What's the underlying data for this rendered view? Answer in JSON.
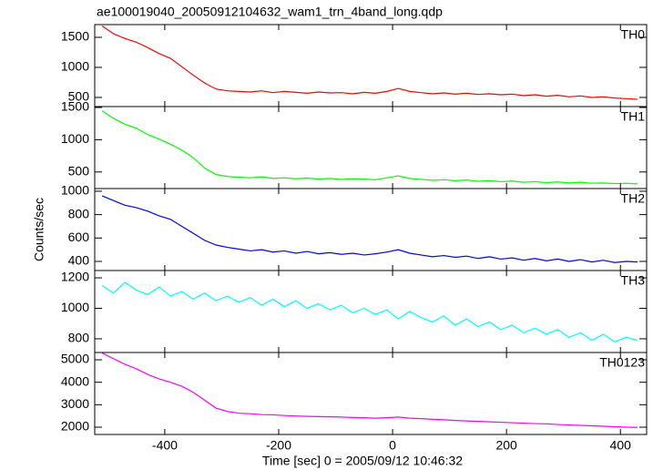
{
  "chart_data": {
    "type": "line",
    "title": "ae100019040_20050912104632_wam1_trn_4band_long.qdp",
    "xlabel": "Time [sec] 0 = 2005/09/12 10:46:32",
    "ylabel": "Counts/sec",
    "xlim": [
      -523,
      446
    ],
    "xticks": [
      -400,
      -200,
      0,
      200,
      400
    ],
    "x": [
      -510,
      -490,
      -470,
      -450,
      -430,
      -410,
      -390,
      -370,
      -350,
      -330,
      -310,
      -290,
      -270,
      -250,
      -230,
      -210,
      -190,
      -170,
      -150,
      -130,
      -110,
      -90,
      -70,
      -50,
      -30,
      -10,
      10,
      30,
      50,
      70,
      90,
      110,
      130,
      150,
      170,
      190,
      210,
      230,
      250,
      270,
      290,
      310,
      330,
      350,
      370,
      390,
      410,
      430
    ],
    "panels": [
      {
        "name": "TH0",
        "color": "#ff0000",
        "ylim": [
          348,
          1712
        ],
        "yticks": [
          500,
          1000,
          1500
        ],
        "values": [
          1690,
          1560,
          1480,
          1420,
          1330,
          1230,
          1150,
          1010,
          870,
          740,
          640,
          610,
          600,
          590,
          610,
          580,
          600,
          585,
          570,
          590,
          575,
          580,
          560,
          585,
          570,
          600,
          650,
          600,
          580,
          560,
          575,
          555,
          570,
          550,
          560,
          545,
          555,
          530,
          545,
          520,
          535,
          510,
          525,
          500,
          510,
          490,
          480,
          470
        ]
      },
      {
        "name": "TH1",
        "color": "#00ff00",
        "ylim": [
          243,
          1514
        ],
        "yticks": [
          500,
          1000,
          1500
        ],
        "values": [
          1450,
          1330,
          1240,
          1180,
          1080,
          1010,
          930,
          840,
          720,
          560,
          460,
          430,
          420,
          410,
          425,
          400,
          410,
          395,
          405,
          390,
          400,
          385,
          395,
          390,
          380,
          410,
          440,
          400,
          385,
          370,
          380,
          365,
          375,
          355,
          365,
          350,
          360,
          340,
          350,
          335,
          345,
          330,
          340,
          325,
          330,
          320,
          325,
          315
        ]
      },
      {
        "name": "TH2",
        "color": "#0000ff",
        "ylim": [
          322,
          1023
        ],
        "yticks": [
          400,
          600,
          800,
          1000
        ],
        "values": [
          960,
          920,
          880,
          860,
          830,
          790,
          760,
          700,
          640,
          580,
          540,
          520,
          505,
          490,
          500,
          480,
          490,
          470,
          485,
          465,
          475,
          460,
          470,
          455,
          465,
          480,
          500,
          470,
          455,
          440,
          450,
          435,
          445,
          425,
          440,
          420,
          430,
          410,
          425,
          405,
          420,
          400,
          415,
          395,
          410,
          390,
          400,
          395
        ]
      },
      {
        "name": "TH3",
        "color": "#00ffff",
        "ylim": [
          710,
          1248
        ],
        "yticks": [
          800,
          1000,
          1200
        ],
        "values": [
          1150,
          1100,
          1170,
          1120,
          1090,
          1140,
          1080,
          1110,
          1060,
          1100,
          1050,
          1080,
          1040,
          1070,
          1020,
          1060,
          1010,
          1050,
          1000,
          1030,
          990,
          1020,
          970,
          1000,
          960,
          990,
          930,
          980,
          940,
          910,
          950,
          890,
          930,
          880,
          910,
          860,
          890,
          840,
          870,
          830,
          860,
          810,
          840,
          790,
          830,
          780,
          810,
          790
        ]
      },
      {
        "name": "TH0123",
        "color": "#ff00ff",
        "ylim": [
          1676,
          5324
        ],
        "yticks": [
          2000,
          3000,
          4000,
          5000
        ],
        "values": [
          5300,
          5050,
          4800,
          4600,
          4350,
          4150,
          4000,
          3820,
          3550,
          3200,
          2850,
          2700,
          2620,
          2600,
          2560,
          2550,
          2520,
          2500,
          2480,
          2470,
          2460,
          2450,
          2430,
          2420,
          2400,
          2420,
          2450,
          2400,
          2380,
          2350,
          2330,
          2300,
          2280,
          2260,
          2240,
          2220,
          2200,
          2180,
          2160,
          2150,
          2120,
          2100,
          2080,
          2060,
          2040,
          2020,
          2000,
          1990
        ]
      }
    ]
  }
}
